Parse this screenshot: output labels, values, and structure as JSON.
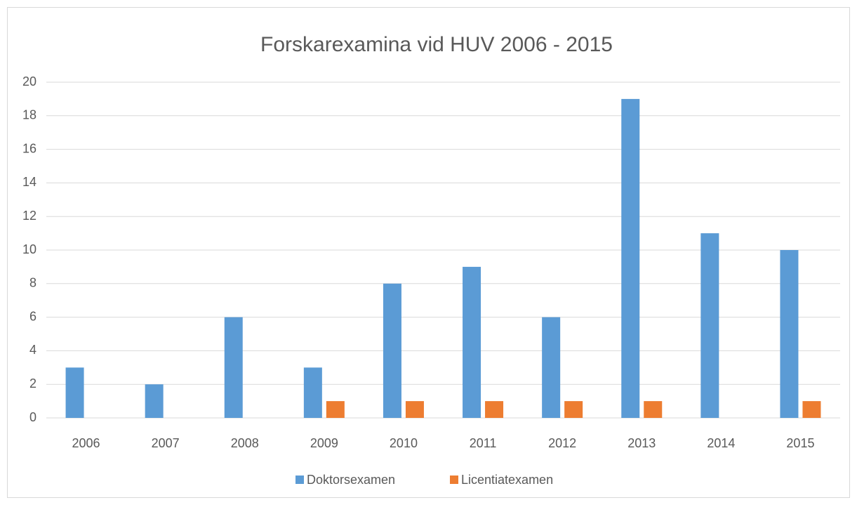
{
  "chart_data": {
    "type": "bar",
    "title": "Forskarexamina vid HUV 2006 - 2015",
    "categories": [
      "2006",
      "2007",
      "2008",
      "2009",
      "2010",
      "2011",
      "2012",
      "2013",
      "2014",
      "2015"
    ],
    "series": [
      {
        "name": "Doktorsexamen",
        "color": "#5b9bd5",
        "values": [
          3,
          2,
          6,
          3,
          8,
          9,
          6,
          19,
          11,
          10
        ]
      },
      {
        "name": "Licentiatexamen",
        "color": "#ed7d31",
        "values": [
          0,
          0,
          0,
          1,
          1,
          1,
          1,
          1,
          0,
          1
        ]
      }
    ],
    "ylim": [
      0,
      20
    ],
    "yticks": [
      0,
      2,
      4,
      6,
      8,
      10,
      12,
      14,
      16,
      18,
      20
    ],
    "grid": true,
    "legend": "bottom"
  }
}
